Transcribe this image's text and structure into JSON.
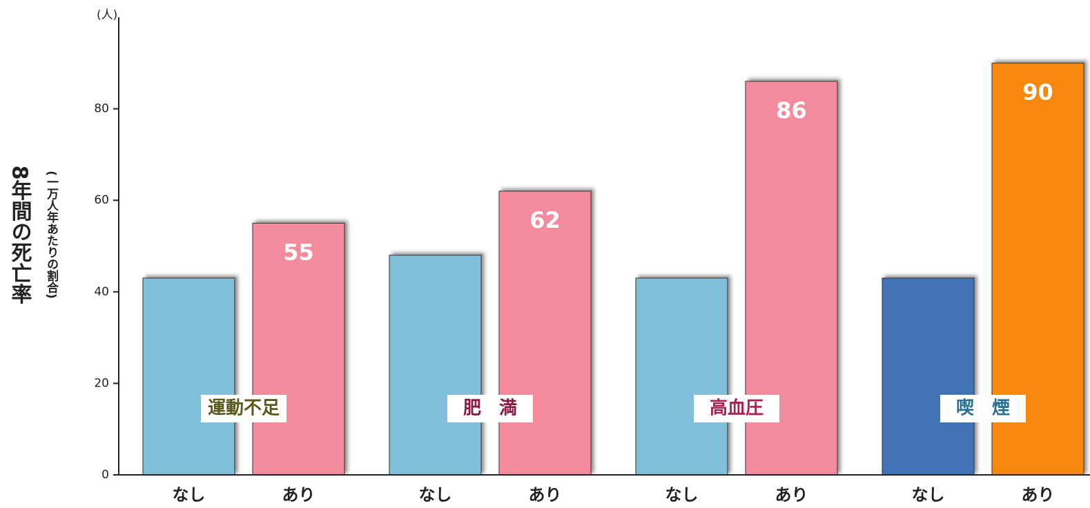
{
  "chart_data": {
    "type": "bar",
    "y_unit": "(人)",
    "y_title": "8年間の死亡率",
    "y_subtitle": "(一万人年あたりの割合)",
    "ylim": [
      0,
      100
    ],
    "yticks": [
      0,
      20,
      40,
      60,
      80
    ],
    "groups": [
      {
        "label": "運動不足",
        "label_color": "#5b5a1c",
        "bars": [
          {
            "category": "なし",
            "value": 43,
            "color": "#80bfd9",
            "show_value": false
          },
          {
            "category": "あり",
            "value": 55,
            "color": "#f58c9d",
            "show_value": true
          }
        ]
      },
      {
        "label": "肥　満",
        "label_color": "#8a1a3c",
        "bars": [
          {
            "category": "なし",
            "value": 48,
            "color": "#80bfd9",
            "show_value": false
          },
          {
            "category": "あり",
            "value": 62,
            "color": "#f58c9d",
            "show_value": true
          }
        ]
      },
      {
        "label": "高血圧",
        "label_color": "#b0204c",
        "bars": [
          {
            "category": "なし",
            "value": 43,
            "color": "#80bfd9",
            "show_value": false
          },
          {
            "category": "あり",
            "value": 86,
            "color": "#f58c9d",
            "show_value": true
          }
        ]
      },
      {
        "label": "喫　煙",
        "label_color": "#2a6f8f",
        "bars": [
          {
            "category": "なし",
            "value": 43,
            "color": "#4373b8",
            "show_value": false
          },
          {
            "category": "あり",
            "value": 90,
            "color": "#f7870f",
            "show_value": true
          }
        ]
      }
    ]
  }
}
